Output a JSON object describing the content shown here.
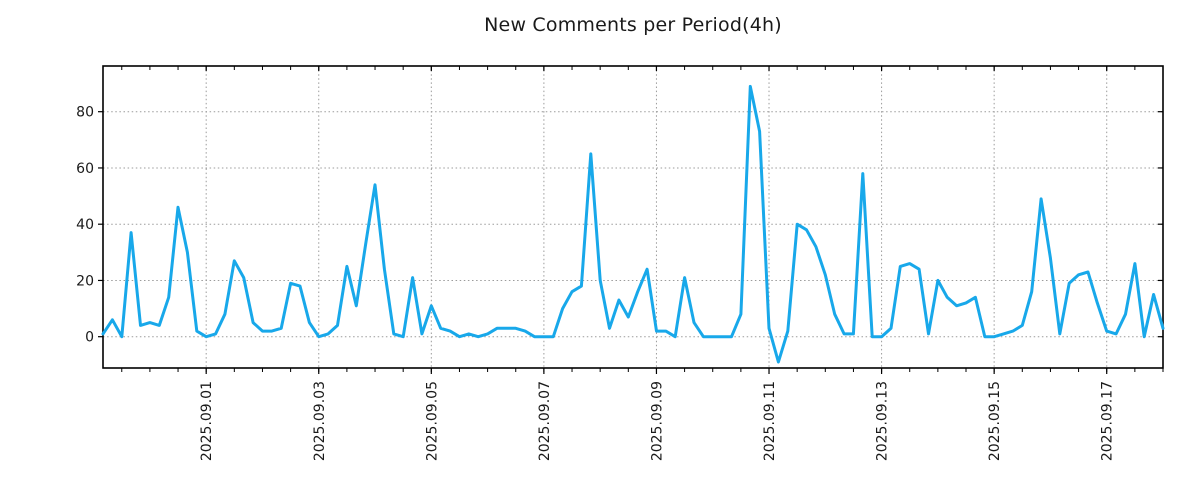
{
  "chart_data": {
    "type": "line",
    "title": "New Comments per Period(4h)",
    "period": "4h",
    "points_per_day": 6,
    "grid": "dotted",
    "legend": "none",
    "colors": {
      "line": "#18a8ea",
      "grid": "#9b9b9b",
      "frame": "#000000",
      "text": "#1a1a1a"
    },
    "y_ticks": [
      0,
      20,
      40,
      60,
      80
    ],
    "ylim": [
      -11.1,
      96.3
    ],
    "x_tick_labels": [
      "2025.09.01",
      "2025.09.03",
      "2025.09.05",
      "2025.09.07",
      "2025.09.09",
      "2025.09.11",
      "2025.09.13",
      "2025.09.15",
      "2025.09.17"
    ],
    "x_tick_indices": [
      11,
      23,
      35,
      47,
      59,
      71,
      83,
      95,
      107
    ],
    "x_minor_tick_every_points": 3,
    "series": [
      {
        "name": "new comments",
        "values": [
          1,
          6,
          0,
          37,
          4,
          5,
          4,
          14,
          46,
          30,
          2,
          0,
          1,
          8,
          27,
          21,
          5,
          2,
          2,
          3,
          19,
          18,
          5,
          0,
          1,
          4,
          25,
          11,
          33,
          54,
          24,
          1,
          0,
          21,
          1,
          11,
          3,
          2,
          0,
          1,
          0,
          1,
          3,
          3,
          3,
          2,
          0,
          0,
          0,
          10,
          16,
          18,
          65,
          20,
          3,
          13,
          7,
          16,
          24,
          2,
          2,
          0,
          21,
          5,
          0,
          0,
          0,
          0,
          8,
          89,
          73,
          3,
          -9,
          2,
          40,
          38,
          32,
          22,
          8,
          1,
          1,
          58,
          0,
          0,
          3,
          25,
          26,
          24,
          1,
          20,
          14,
          11,
          12,
          14,
          0,
          0,
          1,
          2,
          4,
          16,
          49,
          28,
          1,
          19,
          22,
          23,
          12,
          2,
          1,
          8,
          26,
          0,
          15,
          3
        ]
      }
    ]
  }
}
